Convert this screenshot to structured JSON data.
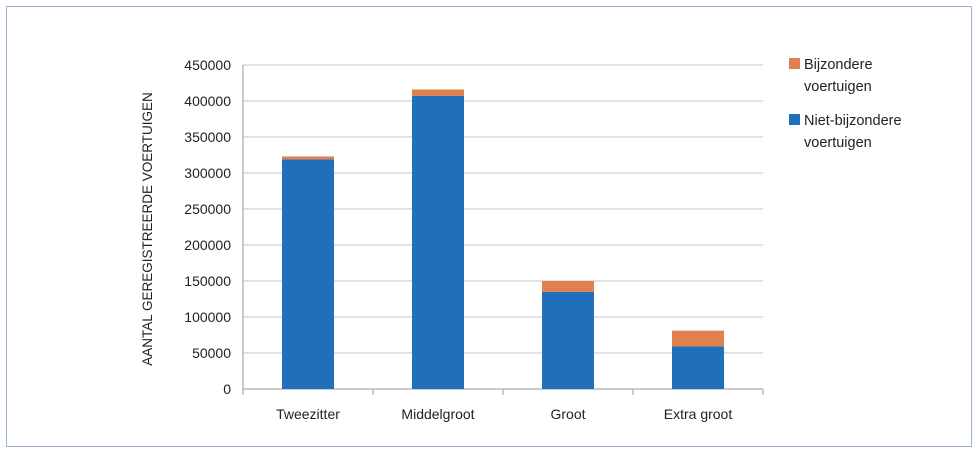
{
  "chart_data": {
    "type": "bar",
    "stacked": true,
    "title": "",
    "xlabel": "",
    "ylabel": "AANTAL GEREGISTREERDE VOERTUIGEN",
    "ylim": [
      0,
      450000
    ],
    "yticks": [
      "0",
      "50000",
      "100000",
      "150000",
      "200000",
      "250000",
      "300000",
      "350000",
      "400000",
      "450000"
    ],
    "categories": [
      "Tweezitter",
      "Middelgroot",
      "Groot",
      "Extra groot"
    ],
    "series": [
      {
        "name": "Niet-bijzondere voertuigen",
        "values": [
          319000,
          407000,
          135000,
          59000
        ],
        "color": "#1f6fba"
      },
      {
        "name": "Bijzondere voertuigen",
        "values": [
          4000,
          9000,
          15000,
          22000
        ],
        "color": "#e07f4f"
      }
    ],
    "legend": {
      "position": "right",
      "items": [
        {
          "series": 1,
          "lines": [
            "Bijzondere",
            "voertuigen"
          ]
        },
        {
          "series": 0,
          "lines": [
            "Niet-bijzondere",
            "voertuigen"
          ]
        }
      ]
    },
    "grid": true
  }
}
